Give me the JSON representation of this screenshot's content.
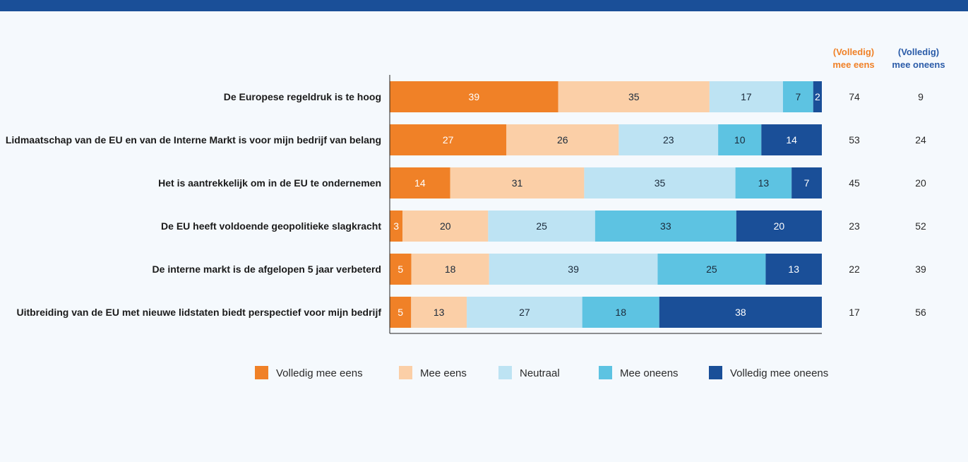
{
  "chart_data": {
    "type": "bar",
    "orientation": "horizontal",
    "stacked": true,
    "categories": [
      "De Europese regeldruk is te hoog",
      "Lidmaatschap van de EU en van de Interne Markt is voor mijn bedrijf van belang",
      "Het is aantrekkelijk om in de EU te ondernemen",
      "De EU heeft voldoende geopolitieke slagkracht",
      "De interne markt is de afgelopen 5 jaar verbeterd",
      "Uitbreiding van de EU met nieuwe lidstaten biedt perspectief voor mijn bedrijf"
    ],
    "series": [
      {
        "name": "Volledig mee eens",
        "color": "#f08127",
        "text_color": "#ffffff",
        "values": [
          39,
          27,
          14,
          3,
          5,
          5
        ]
      },
      {
        "name": "Mee eens",
        "color": "#fbcfa7",
        "text_color": "#1b2a3a",
        "values": [
          35,
          26,
          31,
          20,
          18,
          13
        ]
      },
      {
        "name": "Neutraal",
        "color": "#bde3f3",
        "text_color": "#1b2a3a",
        "values": [
          17,
          23,
          35,
          25,
          39,
          27
        ]
      },
      {
        "name": "Mee oneens",
        "color": "#5dc3e2",
        "text_color": "#1b2a3a",
        "values": [
          7,
          10,
          13,
          33,
          25,
          18
        ]
      },
      {
        "name": "Volledig mee oneens",
        "color": "#1a4f98",
        "text_color": "#ffffff",
        "values": [
          2,
          14,
          7,
          20,
          13,
          38
        ]
      }
    ],
    "xlim": [
      0,
      100
    ],
    "legend": "bottom",
    "summary_columns": [
      {
        "header_line1": "(Volledig)",
        "header_line2": "mee eens",
        "color": "#f08127",
        "values": [
          74,
          53,
          45,
          23,
          22,
          17
        ]
      },
      {
        "header_line1": "(Volledig)",
        "header_line2": "mee oneens",
        "color": "#2a5ba8",
        "values": [
          9,
          24,
          20,
          52,
          39,
          56
        ]
      }
    ]
  }
}
